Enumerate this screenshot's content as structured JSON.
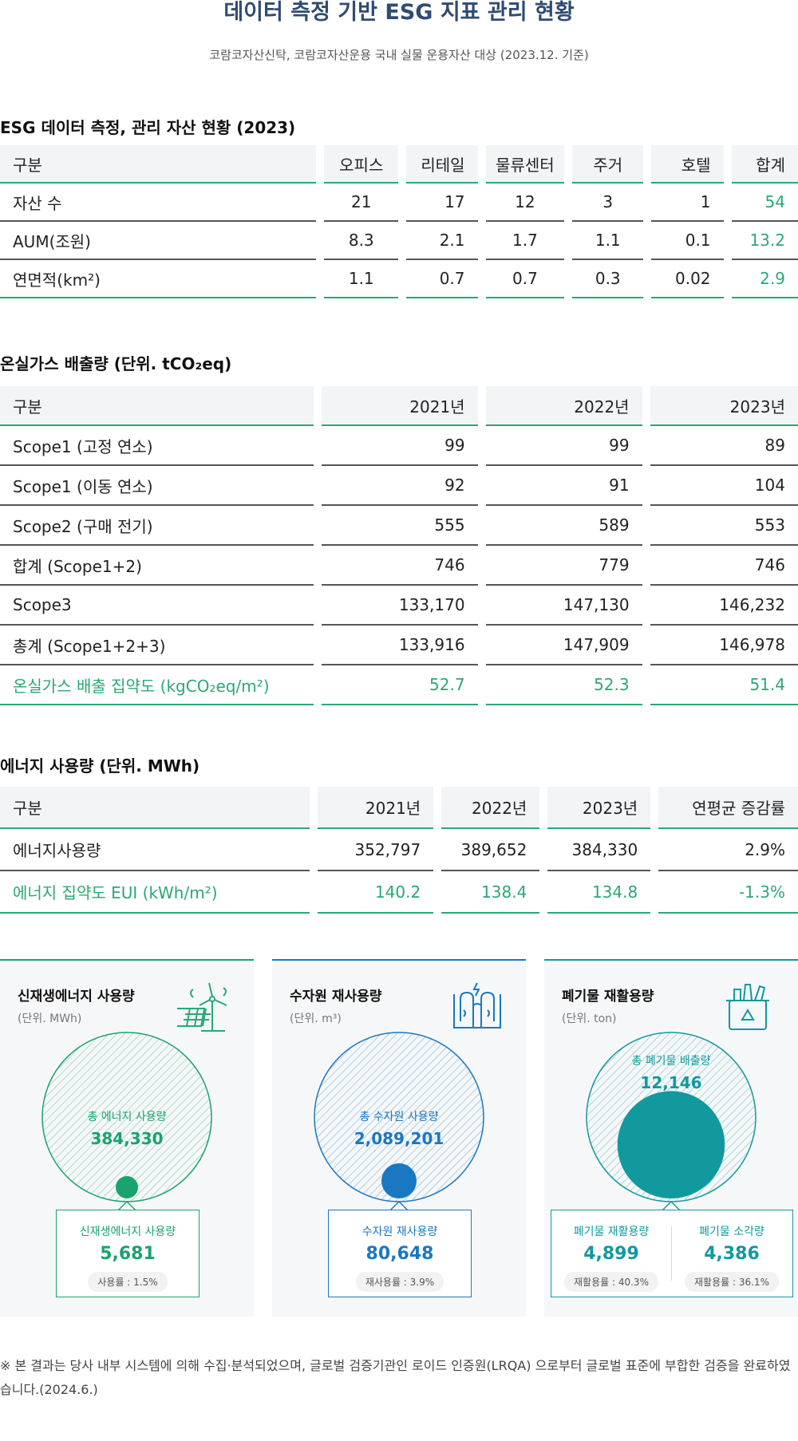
{
  "title": "데이터 측정 기반 ESG 지표 관리 현황",
  "subtitle": "코람코자산신탁, 코람코자산운용 국내 실물 운용자산 대상 (2023.12. 기준)",
  "asset_section": {
    "title": "ESG 데이터 측정, 관리 자산  현황 (2023)",
    "headers": [
      "구분",
      "오피스",
      "리테일",
      "물류센터",
      "주거",
      "호텔",
      "합계"
    ],
    "rows": [
      {
        "label": "자산 수",
        "values": [
          "21",
          "17",
          "12",
          "3",
          "1",
          "54"
        ]
      },
      {
        "label": "AUM(조원)",
        "values": [
          "8.3",
          "2.1",
          "1.7",
          "1.1",
          "0.1",
          "13.2"
        ]
      },
      {
        "label": "연면적(km²)",
        "values": [
          "1.1",
          "0.7",
          "0.7",
          "0.3",
          "0.02",
          "2.9"
        ]
      }
    ]
  },
  "ghg_section": {
    "title": "온실가스 배출량 (단위. tCO₂eq)",
    "headers": [
      "구분",
      "2021년",
      "2022년",
      "2023년"
    ],
    "rows": [
      {
        "label": "Scope1 (고정 연소)",
        "values": [
          "99",
          "99",
          "89"
        ]
      },
      {
        "label": "Scope1 (이동 연소)",
        "values": [
          "92",
          "91",
          "104"
        ]
      },
      {
        "label": "Scope2 (구매 전기)",
        "values": [
          "555",
          "589",
          "553"
        ]
      },
      {
        "label": "합계 (Scope1+2)",
        "values": [
          "746",
          "779",
          "746"
        ]
      },
      {
        "label": "Scope3",
        "values": [
          "133,170",
          "147,130",
          "146,232"
        ]
      },
      {
        "label": "총계 (Scope1+2+3)",
        "values": [
          "133,916",
          "147,909",
          "146,978"
        ]
      },
      {
        "label": "온실가스 배출 집약도 (kgCO₂eq/m²)",
        "values": [
          "52.7",
          "52.3",
          "51.4"
        ]
      }
    ]
  },
  "energy_section": {
    "title": "에너지 사용량 (단위. MWh)",
    "headers": [
      "구분",
      "2021년",
      "2022년",
      "2023년",
      "연평균 증감률"
    ],
    "rows": [
      {
        "label": "에너지사용량",
        "values": [
          "352,797",
          "389,652",
          "384,330",
          "2.9%"
        ]
      },
      {
        "label": "에너지 집약도 EUI (kWh/m²)",
        "values": [
          "140.2",
          "138.4",
          "134.8",
          "-1.3%"
        ]
      }
    ]
  },
  "cards": {
    "renewable": {
      "title": "신재생에너지 사용량",
      "unit": "(단위. MWh)",
      "icon": "solar-wind-icon",
      "color": "#1aa36f",
      "total_label": "총 에너지 사용량",
      "total_value": "384,330",
      "box_label": "신재생에너지 사용량",
      "box_value": "5,681",
      "box_pill": "사용률 : 1.5%",
      "ratio": 0.015
    },
    "water": {
      "title": "수자원 재사용량",
      "unit": "(단위. m³)",
      "icon": "water-dam-icon",
      "color": "#1a78c2",
      "total_label": "총 수자원 사용량",
      "total_value": "2,089,201",
      "box_label": "수자원 재사용량",
      "box_value": "80,648",
      "box_pill": "재사용률 : 3.9%",
      "ratio": 0.039
    },
    "waste": {
      "title": "폐기물 재활용량",
      "unit": "(단위. ton)",
      "icon": "recycle-bin-icon",
      "color": "#12999e",
      "total_label": "총 폐기물 배출량",
      "total_value": "12,146",
      "recycle_label": "폐기물 재활용량",
      "recycle_value": "4,899",
      "recycle_pill": "재활용률 : 40.3%",
      "incin_label": "폐기물 소각량",
      "incin_value": "4,386",
      "incin_pill": "재활용률 : 36.1%",
      "ratio": 0.403
    }
  },
  "footnote": "※ 본 결과는 당사 내부 시스템에 의해 수집·분석되었으며, 글로벌 검증기관인 로이드 인증원(LRQA) 으로부터 글로벌 표준에 부합한 검증을 완료하였습니다.(2024.6.)"
}
